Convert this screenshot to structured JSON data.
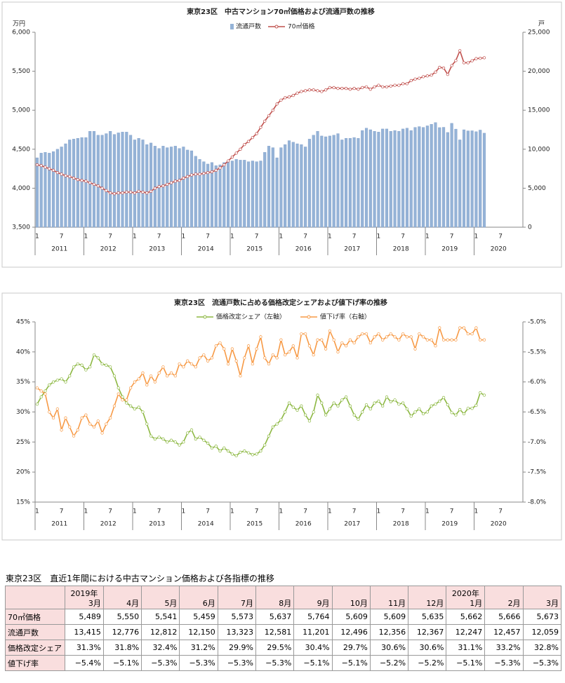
{
  "chart_data": [
    {
      "type": "combo",
      "title": "東京23区　中古マンション70㎡価格および流通戸数の推移",
      "y_unit": "万円",
      "y2_unit": "戸",
      "legend": "top",
      "categories": [
        "1",
        null,
        null,
        null,
        null,
        null,
        "7",
        null,
        null,
        null,
        null,
        null,
        "1",
        null,
        null,
        null,
        null,
        null,
        "7",
        null,
        null,
        null,
        null,
        null,
        "1",
        null,
        null,
        null,
        null,
        null,
        "7",
        null,
        null,
        null,
        null,
        null,
        "1",
        null,
        null,
        null,
        null,
        null,
        "7",
        null,
        null,
        null,
        null,
        null,
        "1",
        null,
        null,
        null,
        null,
        null,
        "7",
        null,
        null,
        null,
        null,
        null,
        "1",
        null,
        null,
        null,
        null,
        null,
        "7",
        null,
        null,
        null,
        null,
        null,
        "1",
        null,
        null,
        null,
        null,
        null,
        "7",
        null,
        null,
        null,
        null,
        null,
        "1",
        null,
        null,
        null,
        null,
        null,
        "7",
        null,
        null,
        null,
        null,
        null,
        "1",
        null,
        null,
        null,
        null,
        null,
        "7",
        null,
        null,
        null,
        null,
        null,
        "1",
        null,
        null,
        null,
        null,
        null,
        "7",
        null,
        null,
        null,
        null,
        null
      ],
      "year_labels": [
        "2011",
        "2012",
        "2013",
        "2014",
        "2015",
        "2016",
        "2017",
        "2018",
        "2019",
        "2020"
      ],
      "ylim": [
        3500,
        6000
      ],
      "yticks": [
        {
          "value": 3500,
          "label": "3,500"
        },
        {
          "value": 4000,
          "label": "4,000"
        },
        {
          "value": 4500,
          "label": "4,500"
        },
        {
          "value": 5000,
          "label": "5,000"
        },
        {
          "value": 5500,
          "label": "5,500"
        },
        {
          "value": 6000,
          "label": "6,000"
        }
      ],
      "y2lim": [
        0,
        25000
      ],
      "y2ticks": [
        0,
        {
          "value": 5000,
          "label": "5,000"
        },
        {
          "value": 10000,
          "label": "10,000"
        },
        {
          "value": 15000,
          "label": "15,000"
        },
        {
          "value": 20000,
          "label": "20,000"
        },
        {
          "value": 25000,
          "label": "25,000"
        }
      ],
      "series": [
        {
          "name": "流通戸数",
          "type": "bar",
          "axis": "y2",
          "color": "#95b3d7",
          "values": [
            8900,
            9500,
            9600,
            9500,
            9700,
            10000,
            10300,
            10700,
            11200,
            11300,
            11400,
            11500,
            11500,
            12300,
            12300,
            11800,
            11800,
            12000,
            12300,
            11900,
            12100,
            12200,
            12200,
            11800,
            11200,
            11400,
            11200,
            10600,
            10800,
            10400,
            10100,
            10400,
            10200,
            10300,
            10400,
            10100,
            10300,
            9900,
            9800,
            9100,
            8700,
            8400,
            8100,
            8300,
            7900,
            8000,
            8300,
            8500,
            8500,
            8700,
            8600,
            8600,
            8400,
            8500,
            8400,
            8500,
            9600,
            10400,
            10200,
            8900,
            10200,
            10600,
            11100,
            10900,
            10700,
            10600,
            10300,
            11300,
            11800,
            12300,
            11700,
            11600,
            11700,
            11800,
            12000,
            11200,
            11400,
            11400,
            11500,
            11400,
            12400,
            12700,
            12500,
            12300,
            12200,
            12600,
            12600,
            12300,
            12400,
            12300,
            12600,
            12700,
            12400,
            12800,
            12900,
            12800,
            13000,
            13200,
            13415,
            12776,
            12812,
            12150,
            13323,
            12581,
            11201,
            12496,
            12356,
            12367,
            12247,
            12457,
            12059,
            null,
            null,
            null,
            null,
            null,
            null,
            null,
            null,
            null
          ]
        },
        {
          "name": "70㎡価格",
          "type": "line",
          "color": "#c0504d",
          "values": [
            4300,
            4290,
            4270,
            4250,
            4230,
            4200,
            4180,
            4160,
            4150,
            4130,
            4110,
            4100,
            4090,
            4070,
            4050,
            4030,
            4000,
            3970,
            3940,
            3930,
            3940,
            3940,
            3950,
            3950,
            3940,
            3960,
            3950,
            3940,
            3960,
            4000,
            4020,
            4030,
            4050,
            4070,
            4090,
            4100,
            4130,
            4150,
            4170,
            4180,
            4180,
            4190,
            4200,
            4210,
            4230,
            4260,
            4300,
            4350,
            4400,
            4450,
            4500,
            4560,
            4600,
            4650,
            4700,
            4780,
            4860,
            4930,
            5000,
            5080,
            5130,
            5160,
            5170,
            5190,
            5220,
            5240,
            5250,
            5260,
            5260,
            5250,
            5240,
            5260,
            5290,
            5290,
            5280,
            5280,
            5280,
            5270,
            5280,
            5270,
            5290,
            5300,
            5270,
            5300,
            5320,
            5300,
            5300,
            5310,
            5320,
            5320,
            5340,
            5340,
            5380,
            5400,
            5410,
            5430,
            5440,
            5450,
            5489,
            5550,
            5541,
            5459,
            5573,
            5637,
            5764,
            5609,
            5609,
            5635,
            5662,
            5666,
            5673,
            null,
            null,
            null,
            null,
            null,
            null,
            null,
            null,
            null
          ]
        }
      ]
    },
    {
      "type": "line",
      "title": "東京23区　流通戸数に占める価格改定シェアおよび値下げ率の推移",
      "legend": "top",
      "categories": [
        "1",
        null,
        null,
        null,
        null,
        null,
        "7",
        null,
        null,
        null,
        null,
        null,
        "1",
        null,
        null,
        null,
        null,
        null,
        "7",
        null,
        null,
        null,
        null,
        null,
        "1",
        null,
        null,
        null,
        null,
        null,
        "7",
        null,
        null,
        null,
        null,
        null,
        "1",
        null,
        null,
        null,
        null,
        null,
        "7",
        null,
        null,
        null,
        null,
        null,
        "1",
        null,
        null,
        null,
        null,
        null,
        "7",
        null,
        null,
        null,
        null,
        null,
        "1",
        null,
        null,
        null,
        null,
        null,
        "7",
        null,
        null,
        null,
        null,
        null,
        "1",
        null,
        null,
        null,
        null,
        null,
        "7",
        null,
        null,
        null,
        null,
        null,
        "1",
        null,
        null,
        null,
        null,
        null,
        "7",
        null,
        null,
        null,
        null,
        null,
        "1",
        null,
        null,
        null,
        null,
        null,
        "7",
        null,
        null,
        null,
        null,
        null,
        "1",
        null,
        null,
        null,
        null,
        null,
        "7",
        null,
        null,
        null,
        null,
        null
      ],
      "year_labels": [
        "2011",
        "2012",
        "2013",
        "2014",
        "2015",
        "2016",
        "2017",
        "2018",
        "2019",
        "2020"
      ],
      "ylim": [
        15,
        45
      ],
      "yticks": [
        {
          "value": 15,
          "label": "15%"
        },
        {
          "value": 20,
          "label": "20%"
        },
        {
          "value": 25,
          "label": "25%"
        },
        {
          "value": 30,
          "label": "30%"
        },
        {
          "value": 35,
          "label": "35%"
        },
        {
          "value": 40,
          "label": "40%"
        },
        {
          "value": 45,
          "label": "45%"
        }
      ],
      "y2lim": [
        -8,
        -5
      ],
      "y2ticks": [
        {
          "value": -8,
          "label": "-8.0%"
        },
        {
          "value": -7.5,
          "label": "-7.5%"
        },
        {
          "value": -7,
          "label": "-7.0%"
        },
        {
          "value": -6.5,
          "label": "-6.5%"
        },
        {
          "value": -6,
          "label": "-6.0%"
        },
        {
          "value": -5.5,
          "label": "-5.5%"
        },
        {
          "value": -5,
          "label": "-5.0%"
        }
      ],
      "series": [
        {
          "name": "価格改定シェア（左軸）",
          "color": "#8db843",
          "values": [
            31.3,
            32.5,
            33.5,
            34.5,
            35,
            35.3,
            35.5,
            35,
            36,
            37.5,
            38,
            37.8,
            37,
            37.5,
            39.5,
            39,
            38,
            37.8,
            37.5,
            36,
            34,
            32.5,
            31.5,
            31,
            30.5,
            30.8,
            30,
            28,
            26,
            25.5,
            25.8,
            25.5,
            25,
            25.3,
            25,
            24.5,
            25,
            26.5,
            27,
            25.5,
            25.8,
            25.3,
            24.8,
            24,
            24.3,
            23.5,
            24,
            23.5,
            23,
            22.7,
            23.3,
            23.5,
            23.2,
            22.9,
            23,
            23.5,
            24.5,
            26,
            27.5,
            28,
            28.7,
            30,
            31.5,
            30.8,
            30.3,
            31,
            29.5,
            28.5,
            30,
            32.8,
            31.5,
            29.5,
            30.5,
            31.5,
            31,
            32,
            32.5,
            31,
            29.5,
            28.8,
            30,
            31.2,
            30.5,
            31.5,
            31.8,
            31,
            32.5,
            31.7,
            32,
            31.3,
            31.5,
            30.5,
            29.3,
            30,
            30.5,
            29.7,
            30,
            31,
            31.3,
            31.8,
            32.4,
            31.2,
            29.9,
            29.5,
            30.4,
            29.7,
            30.6,
            30.6,
            31.1,
            33.2,
            32.8,
            null,
            null,
            null,
            null,
            null,
            null,
            null,
            null,
            null
          ]
        },
        {
          "name": "値下げ率（右軸）",
          "axis": "y2",
          "color": "#f79a46",
          "values": [
            -6.1,
            -6.15,
            -6.2,
            -6.5,
            -6.6,
            -6.45,
            -6.8,
            -6.6,
            -6.75,
            -6.9,
            -6.8,
            -6.6,
            -6.55,
            -6.7,
            -6.75,
            -6.65,
            -6.85,
            -6.7,
            -6.6,
            -6.4,
            -6.2,
            -6.3,
            -6.3,
            -6.1,
            -6.0,
            -5.95,
            -5.85,
            -6.05,
            -5.9,
            -6.0,
            -5.85,
            -5.75,
            -5.9,
            -5.85,
            -5.9,
            -5.7,
            -5.75,
            -5.65,
            -5.7,
            -5.75,
            -5.6,
            -5.55,
            -5.65,
            -5.6,
            -5.4,
            -5.35,
            -5.45,
            -5.7,
            -5.45,
            -5.65,
            -5.9,
            -5.6,
            -5.4,
            -5.7,
            -5.45,
            -5.25,
            -5.6,
            -5.7,
            -5.55,
            -5.6,
            -5.3,
            -5.55,
            -5.5,
            -5.4,
            -5.6,
            -5.2,
            -5.2,
            -5.4,
            -5.55,
            -5.3,
            -5.3,
            -5.45,
            -5.15,
            -5.3,
            -5.5,
            -5.35,
            -5.4,
            -5.3,
            -5.35,
            -5.25,
            -5.2,
            -5.2,
            -5.35,
            -5.25,
            -5.2,
            -5.3,
            -5.25,
            -5.2,
            -5.25,
            -5.3,
            -5.2,
            -5.25,
            -5.25,
            -5.45,
            -5.2,
            -5.25,
            -5.3,
            -5.3,
            -5.4,
            -5.1,
            -5.3,
            -5.3,
            -5.3,
            -5.3,
            -5.1,
            -5.1,
            -5.2,
            -5.2,
            -5.1,
            -5.3,
            -5.3,
            null,
            null,
            null,
            null,
            null,
            null,
            null,
            null,
            null
          ]
        }
      ]
    }
  ],
  "table": {
    "title": "東京23区　直近1年間における中古マンション価格および各指標の推移",
    "years": [
      "2019年",
      null,
      null,
      null,
      null,
      null,
      null,
      null,
      null,
      null,
      "2020年",
      null,
      null
    ],
    "months": [
      "3月",
      "4月",
      "5月",
      "6月",
      "7月",
      "8月",
      "9月",
      "10月",
      "11月",
      "12月",
      "1月",
      "2月",
      "3月"
    ],
    "rows": [
      {
        "label": "70㎡価格",
        "values": [
          "5,489",
          "5,550",
          "5,541",
          "5,459",
          "5,573",
          "5,637",
          "5,764",
          "5,609",
          "5,609",
          "5,635",
          "5,662",
          "5,666",
          "5,673"
        ]
      },
      {
        "label": "流通戸数",
        "values": [
          "13,415",
          "12,776",
          "12,812",
          "12,150",
          "13,323",
          "12,581",
          "11,201",
          "12,496",
          "12,356",
          "12,367",
          "12,247",
          "12,457",
          "12,059"
        ]
      },
      {
        "label": "価格改定シェア",
        "values": [
          "31.3%",
          "31.8%",
          "32.4%",
          "31.2%",
          "29.9%",
          "29.5%",
          "30.4%",
          "29.7%",
          "30.6%",
          "30.6%",
          "31.1%",
          "33.2%",
          "32.8%"
        ]
      },
      {
        "label": "値下げ率",
        "values": [
          "−5.4%",
          "−5.1%",
          "−5.3%",
          "−5.3%",
          "−5.3%",
          "−5.3%",
          "−5.1%",
          "−5.1%",
          "−5.2%",
          "−5.2%",
          "−5.1%",
          "−5.3%",
          "−5.3%"
        ]
      }
    ]
  }
}
